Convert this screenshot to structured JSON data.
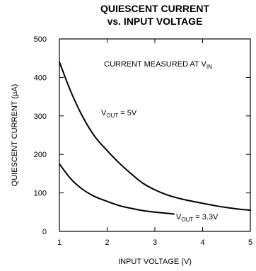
{
  "chart_data": {
    "type": "line",
    "title_line1": "QUIESCENT CURRENT",
    "title_line2": "vs. INPUT VOLTAGE",
    "xlabel": "INPUT VOLTAGE (V)",
    "ylabel": "QUIESCENT CURRENT (µA)",
    "xlim": [
      1,
      5
    ],
    "ylim": [
      0,
      500
    ],
    "xticks": [
      "1",
      "2",
      "3",
      "4",
      "5"
    ],
    "yticks": [
      "0",
      "100",
      "200",
      "300",
      "400",
      "500"
    ],
    "grid": false,
    "annotation": {
      "main": "CURRENT MEASURED AT V",
      "sub": "IN"
    },
    "series": [
      {
        "name": "VOUT = 5V",
        "label_prefix": "V",
        "label_sub": "OUT",
        "label_suffix": " = 5V",
        "x": [
          1.0,
          1.25,
          1.5,
          1.75,
          2.0,
          2.25,
          2.5,
          2.75,
          3.0,
          3.25,
          3.5,
          3.75,
          4.0,
          4.25,
          4.5,
          4.75,
          5.0
        ],
        "y": [
          440,
          360,
          295,
          245,
          210,
          178,
          150,
          125,
          108,
          95,
          86,
          79,
          73,
          67,
          62,
          58,
          55
        ]
      },
      {
        "name": "VOUT = 3.3V",
        "label_prefix": "V",
        "label_sub": "OUT",
        "label_suffix": " = 3.3V",
        "x": [
          1.0,
          1.25,
          1.5,
          1.75,
          2.0,
          2.25,
          2.5,
          2.75,
          3.0,
          3.25,
          3.4
        ],
        "y": [
          175,
          135,
          108,
          90,
          78,
          67,
          60,
          54,
          50,
          47,
          45
        ]
      }
    ]
  }
}
